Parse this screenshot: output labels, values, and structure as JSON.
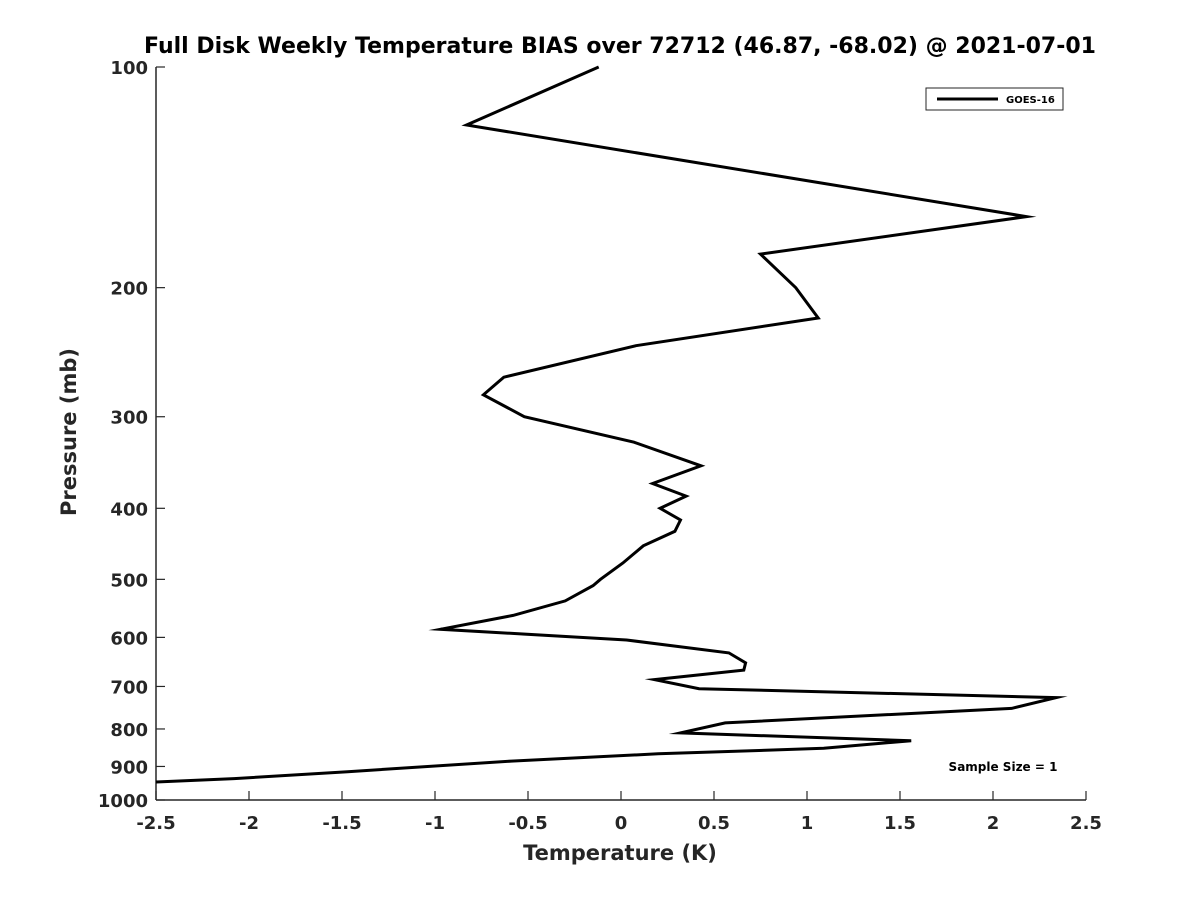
{
  "chart_data": {
    "type": "line",
    "title": "Full Disk Weekly Temperature BIAS over 72712 (46.87, -68.02) @ 2021-07-01",
    "xlabel": "Temperature (K)",
    "ylabel": "Pressure (mb)",
    "xlim": [
      -2.5,
      2.5
    ],
    "ylim": [
      100,
      1000
    ],
    "y_scale": "log",
    "y_reversed": true,
    "x_ticks": [
      -2.5,
      -2,
      -1.5,
      -1,
      -0.5,
      0,
      0.5,
      1,
      1.5,
      2,
      2.5
    ],
    "x_tick_labels": [
      "-2.5",
      "-2",
      "-1.5",
      "-1",
      "-0.5",
      "0",
      "0.5",
      "1",
      "1.5",
      "2",
      "2.5"
    ],
    "y_ticks": [
      100,
      200,
      300,
      400,
      500,
      600,
      700,
      800,
      900,
      1000
    ],
    "y_tick_labels": [
      "100",
      "200",
      "300",
      "400",
      "500",
      "600",
      "700",
      "800",
      "900",
      "1000"
    ],
    "grid": false,
    "legend": "top-right",
    "annotation": "Sample Size = 1",
    "series": [
      {
        "name": "GOES-16",
        "color": "#000000",
        "points": [
          {
            "x": -0.12,
            "p": 100
          },
          {
            "x": -0.83,
            "p": 120
          },
          {
            "x": 2.18,
            "p": 160
          },
          {
            "x": 0.75,
            "p": 180
          },
          {
            "x": 0.94,
            "p": 200
          },
          {
            "x": 1.06,
            "p": 220
          },
          {
            "x": 0.08,
            "p": 240
          },
          {
            "x": -0.63,
            "p": 265
          },
          {
            "x": -0.74,
            "p": 280
          },
          {
            "x": -0.52,
            "p": 300
          },
          {
            "x": 0.07,
            "p": 325
          },
          {
            "x": 0.43,
            "p": 350
          },
          {
            "x": 0.17,
            "p": 370
          },
          {
            "x": 0.35,
            "p": 385
          },
          {
            "x": 0.21,
            "p": 400
          },
          {
            "x": 0.32,
            "p": 415
          },
          {
            "x": 0.29,
            "p": 430
          },
          {
            "x": 0.12,
            "p": 450
          },
          {
            "x": 0.01,
            "p": 475
          },
          {
            "x": -0.11,
            "p": 500
          },
          {
            "x": -0.15,
            "p": 510
          },
          {
            "x": -0.3,
            "p": 535
          },
          {
            "x": -0.58,
            "p": 560
          },
          {
            "x": -0.97,
            "p": 585
          },
          {
            "x": 0.03,
            "p": 605
          },
          {
            "x": 0.58,
            "p": 630
          },
          {
            "x": 0.67,
            "p": 650
          },
          {
            "x": 0.66,
            "p": 665
          },
          {
            "x": 0.18,
            "p": 685
          },
          {
            "x": 0.42,
            "p": 705
          },
          {
            "x": 2.34,
            "p": 725
          },
          {
            "x": 2.1,
            "p": 750
          },
          {
            "x": 0.56,
            "p": 785
          },
          {
            "x": 0.32,
            "p": 810
          },
          {
            "x": 1.56,
            "p": 830
          },
          {
            "x": 1.09,
            "p": 850
          },
          {
            "x": 0.2,
            "p": 865
          },
          {
            "x": -0.59,
            "p": 885
          },
          {
            "x": -1.47,
            "p": 915
          },
          {
            "x": -2.08,
            "p": 935
          },
          {
            "x": -2.5,
            "p": 945
          }
        ]
      }
    ]
  }
}
